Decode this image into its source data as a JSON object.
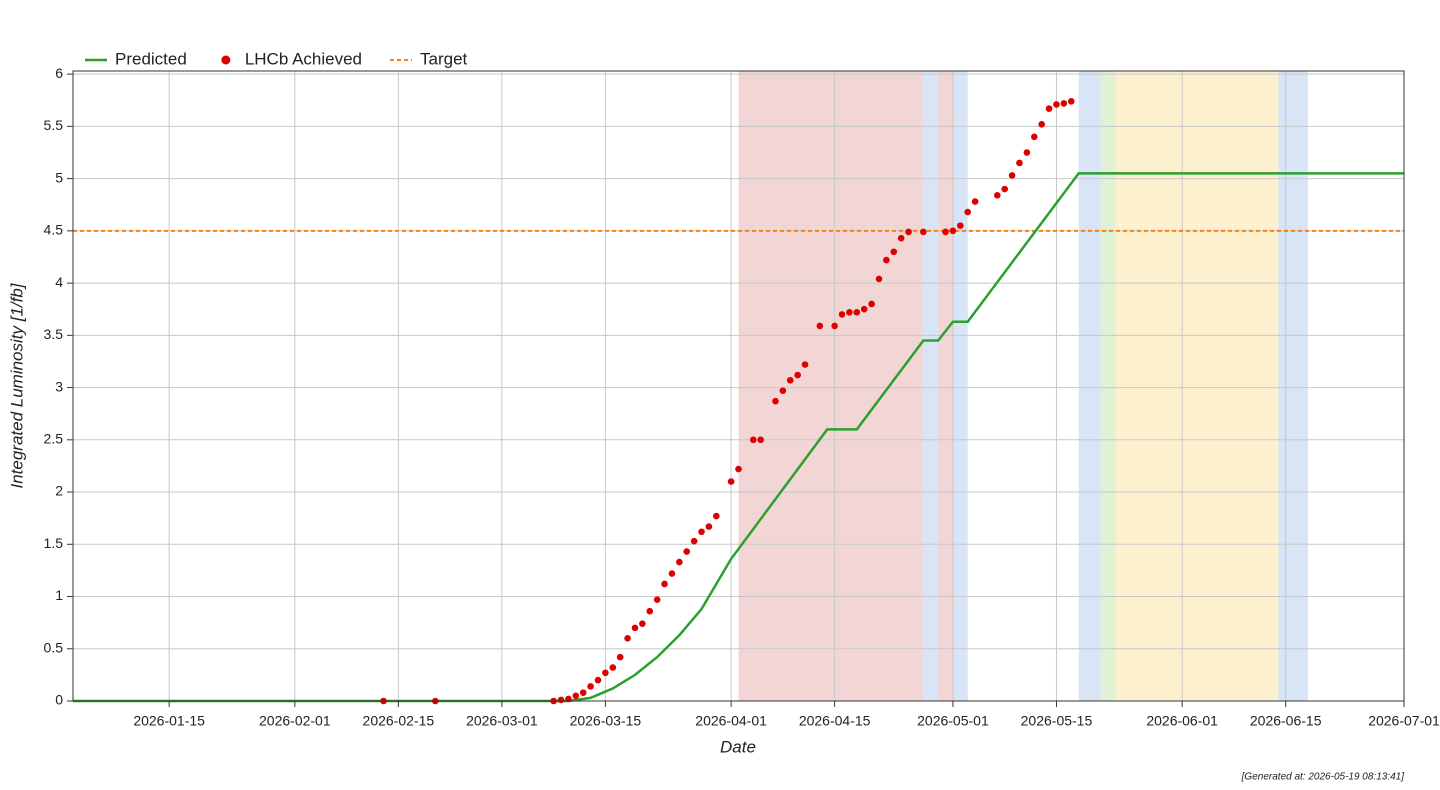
{
  "chart_data": {
    "type": "line",
    "x_label": "Date",
    "y_label": "Integrated Luminosity [1/fb]",
    "footer": "[Generated at: 2026-05-19 08:13:41]",
    "xlim": [
      "2026-01-02",
      "2026-07-01"
    ],
    "xticks": [
      "2026-01-15",
      "2026-02-01",
      "2026-02-15",
      "2026-03-01",
      "2026-03-15",
      "2026-04-01",
      "2026-04-15",
      "2026-05-01",
      "2026-05-15",
      "2026-06-01",
      "2026-06-15",
      "2026-07-01"
    ],
    "ylim": [
      0,
      6.03
    ],
    "yticks": [
      0,
      0.5,
      1,
      1.5,
      2,
      2.5,
      3,
      3.5,
      4,
      4.5,
      5,
      5.5,
      6
    ],
    "grid": true,
    "bands": [
      {
        "start": "2026-04-02",
        "end": "2026-04-27",
        "color": "#e8b4b4"
      },
      {
        "start": "2026-04-27",
        "end": "2026-04-29",
        "color": "#b8d0ee"
      },
      {
        "start": "2026-04-29",
        "end": "2026-05-01",
        "color": "#e8b4b4"
      },
      {
        "start": "2026-05-01",
        "end": "2026-05-03",
        "color": "#b8d0ee"
      },
      {
        "start": "2026-05-18",
        "end": "2026-05-21",
        "color": "#b8d0ee"
      },
      {
        "start": "2026-05-21",
        "end": "2026-05-23",
        "color": "#c8e6b0"
      },
      {
        "start": "2026-05-23",
        "end": "2026-06-14",
        "color": "#fbe3a6"
      },
      {
        "start": "2026-06-14",
        "end": "2026-06-18",
        "color": "#b8d0ee"
      }
    ],
    "series": [
      {
        "name": "Predicted",
        "type": "line",
        "color": "#2ca02c",
        "x": [
          "2026-01-02",
          "2026-03-10",
          "2026-03-13",
          "2026-03-16",
          "2026-03-19",
          "2026-03-22",
          "2026-03-25",
          "2026-03-28",
          "2026-04-01",
          "2026-04-14",
          "2026-04-18",
          "2026-04-27",
          "2026-04-29",
          "2026-05-01",
          "2026-05-03",
          "2026-05-18",
          "2026-07-01"
        ],
        "values": [
          0,
          0,
          0.03,
          0.12,
          0.25,
          0.42,
          0.63,
          0.88,
          1.36,
          2.6,
          2.6,
          3.45,
          3.45,
          3.63,
          3.63,
          5.05,
          5.05
        ]
      },
      {
        "name": "LHCb Achieved",
        "type": "scatter",
        "color": "#dd0000",
        "x": [
          "2026-02-13",
          "2026-02-20",
          "2026-03-08",
          "2026-03-09",
          "2026-03-10",
          "2026-03-11",
          "2026-03-12",
          "2026-03-13",
          "2026-03-14",
          "2026-03-15",
          "2026-03-16",
          "2026-03-17",
          "2026-03-18",
          "2026-03-19",
          "2026-03-20",
          "2026-03-21",
          "2026-03-22",
          "2026-03-23",
          "2026-03-24",
          "2026-03-25",
          "2026-03-26",
          "2026-03-27",
          "2026-03-28",
          "2026-03-29",
          "2026-03-30",
          "2026-04-01",
          "2026-04-02",
          "2026-04-04",
          "2026-04-05",
          "2026-04-07",
          "2026-04-08",
          "2026-04-09",
          "2026-04-10",
          "2026-04-11",
          "2026-04-13",
          "2026-04-15",
          "2026-04-16",
          "2026-04-17",
          "2026-04-18",
          "2026-04-19",
          "2026-04-20",
          "2026-04-21",
          "2026-04-22",
          "2026-04-23",
          "2026-04-24",
          "2026-04-25",
          "2026-04-27",
          "2026-04-30",
          "2026-05-01",
          "2026-05-02",
          "2026-05-03",
          "2026-05-04",
          "2026-05-07",
          "2026-05-08",
          "2026-05-09",
          "2026-05-10",
          "2026-05-11",
          "2026-05-12",
          "2026-05-13",
          "2026-05-14",
          "2026-05-15",
          "2026-05-16",
          "2026-05-17"
        ],
        "values": [
          0,
          0,
          0,
          0.01,
          0.02,
          0.05,
          0.08,
          0.14,
          0.2,
          0.27,
          0.32,
          0.42,
          0.6,
          0.7,
          0.74,
          0.86,
          0.97,
          1.12,
          1.22,
          1.33,
          1.43,
          1.53,
          1.62,
          1.67,
          1.77,
          2.1,
          2.22,
          2.5,
          2.5,
          2.87,
          2.97,
          3.07,
          3.12,
          3.22,
          3.59,
          3.59,
          3.7,
          3.72,
          3.72,
          3.75,
          3.8,
          4.04,
          4.22,
          4.3,
          4.43,
          4.49,
          4.49,
          4.49,
          4.5,
          4.55,
          4.68,
          4.78,
          4.84,
          4.9,
          5.03,
          5.15,
          5.25,
          5.4,
          5.52,
          5.67,
          5.71,
          5.72,
          5.74
        ]
      },
      {
        "name": "Target",
        "type": "hline",
        "color": "#ff7f0e",
        "values": [
          4.5
        ]
      }
    ]
  }
}
